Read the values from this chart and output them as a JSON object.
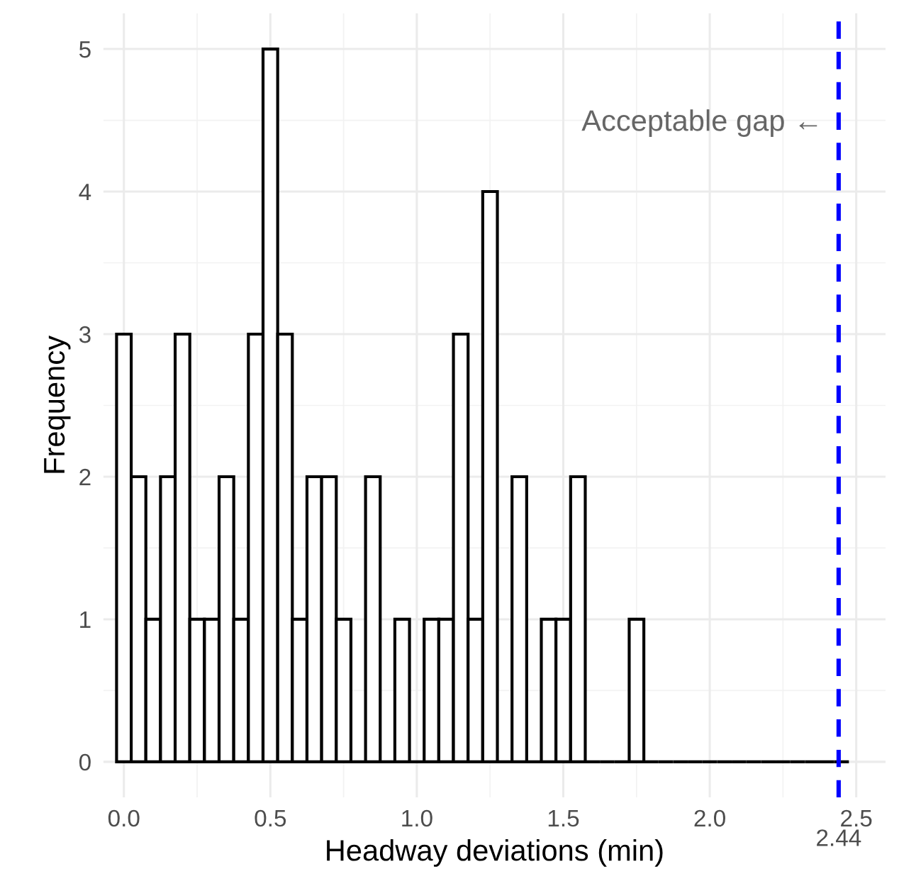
{
  "chart_data": {
    "type": "histogram",
    "xlabel": "Headway deviations (min)",
    "ylabel": "Frequency",
    "bins": [
      -0.025,
      0.025,
      0.075,
      0.125,
      0.175,
      0.225,
      0.275,
      0.325,
      0.375,
      0.425,
      0.475,
      0.525,
      0.575,
      0.625,
      0.675,
      0.725,
      0.775,
      0.825,
      0.875,
      0.925,
      0.975,
      1.025,
      1.075,
      1.125,
      1.175,
      1.225,
      1.275,
      1.325,
      1.375,
      1.425,
      1.475,
      1.525,
      1.575,
      1.625,
      1.675,
      1.725,
      1.775,
      1.825,
      1.875,
      1.925,
      1.975,
      2.025,
      2.075,
      2.125,
      2.175,
      2.225,
      2.275,
      2.325,
      2.375,
      2.425,
      2.475
    ],
    "values": [
      3,
      2,
      1,
      2,
      3,
      1,
      1,
      2,
      1,
      3,
      5,
      3,
      1,
      2,
      2,
      1,
      0,
      2,
      0,
      1,
      0,
      1,
      1,
      3,
      1,
      4,
      0,
      2,
      0,
      1,
      1,
      2,
      0,
      0,
      0,
      1,
      0,
      0,
      0,
      0,
      0,
      0,
      0,
      0,
      0,
      0,
      0,
      0,
      0,
      0
    ],
    "color": "#000000",
    "xlim": [
      -0.07,
      2.6
    ],
    "ylim": [
      -0.25,
      5.25
    ],
    "xticks": [
      {
        "value": 0,
        "label": "0.0"
      },
      0.5,
      {
        "value": 1,
        "label": "1.0"
      },
      1.5,
      {
        "value": 2,
        "label": "2.0"
      },
      2.5
    ],
    "yticks": [
      0,
      1,
      2,
      3,
      4,
      5
    ],
    "grid": true,
    "ref_lines": [
      {
        "axis": "x",
        "value": 2.44,
        "label": "2.44",
        "color": "#0000ff",
        "line_style": "dashed"
      }
    ],
    "annotations": [
      "Acceptable gap ←"
    ]
  }
}
